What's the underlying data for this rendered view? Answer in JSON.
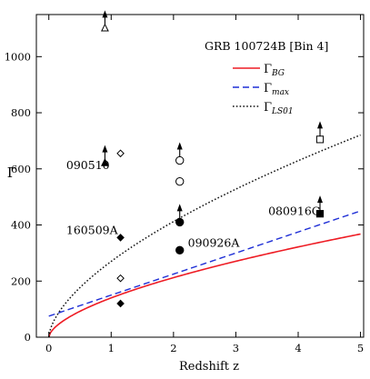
{
  "chart_data": {
    "type": "scatter",
    "title": "",
    "xlabel": "Redshift z",
    "ylabel": "Γ",
    "xlim": [
      -0.2,
      5.05
    ],
    "ylim": [
      0,
      1150
    ],
    "xticks": [
      0,
      1,
      2,
      3,
      4,
      5
    ],
    "yticks": [
      0,
      200,
      400,
      600,
      800,
      1000
    ],
    "grid": false,
    "legend": {
      "placement": "top-right",
      "header": "GRB 100724B [Bin 4]",
      "entries": [
        {
          "label": "Γ_BG",
          "main": "Γ",
          "sub": "BG",
          "color": "#ee1c24",
          "dash": "solid"
        },
        {
          "label": "Γ_max",
          "main": "Γ",
          "sub": "max",
          "color": "#1f2fd6",
          "dash": "dashed"
        },
        {
          "label": "Γ_LS01",
          "main": "Γ",
          "sub": "LS01",
          "color": "#111111",
          "dash": "dotted"
        }
      ]
    },
    "curves": [
      {
        "name": "Γ_BG",
        "color": "#ee1c24",
        "dash": "solid",
        "lw": 1.6,
        "shape": "power",
        "amplitude": 140,
        "exponent": 0.6,
        "offset": 0,
        "x_range": [
          0,
          5
        ]
      },
      {
        "name": "Γ_max",
        "color": "#1f2fd6",
        "dash": "dashed",
        "lw": 1.4,
        "shape": "linear",
        "y0": 75,
        "slope": 75,
        "x_range": [
          0,
          5
        ]
      },
      {
        "name": "Γ_LS01",
        "color": "#111111",
        "dash": "dotted",
        "lw": 1.5,
        "shape": "power",
        "amplitude": 270,
        "exponent": 0.61,
        "offset": 0,
        "x_range": [
          0,
          5
        ]
      }
    ],
    "points": [
      {
        "x": 0.9,
        "y": 1100,
        "marker": "open-triangle-up",
        "arrow": "up"
      },
      {
        "x": 0.9,
        "y": 620,
        "marker": "filled-triangle-up",
        "arrow": "up"
      },
      {
        "x": 1.15,
        "y": 655,
        "marker": "open-diamond"
      },
      {
        "x": 1.15,
        "y": 355,
        "marker": "filled-diamond"
      },
      {
        "x": 1.15,
        "y": 210,
        "marker": "open-diamond"
      },
      {
        "x": 1.15,
        "y": 120,
        "marker": "filled-diamond"
      },
      {
        "x": 2.1,
        "y": 630,
        "marker": "open-circle",
        "arrow": "up"
      },
      {
        "x": 2.1,
        "y": 555,
        "marker": "open-circle"
      },
      {
        "x": 2.1,
        "y": 410,
        "marker": "filled-circle",
        "arrow": "up"
      },
      {
        "x": 2.1,
        "y": 310,
        "marker": "filled-circle"
      },
      {
        "x": 4.35,
        "y": 705,
        "marker": "open-square",
        "arrow": "up"
      },
      {
        "x": 4.35,
        "y": 440,
        "marker": "filled-square",
        "arrow": "up"
      }
    ],
    "annotations": [
      {
        "text": "090510",
        "x": 0.28,
        "y": 600
      },
      {
        "text": "160509A",
        "x": 0.28,
        "y": 368
      },
      {
        "text": "090926A",
        "x": 2.23,
        "y": 322
      },
      {
        "text": "080916C",
        "x": 3.52,
        "y": 436
      }
    ]
  }
}
